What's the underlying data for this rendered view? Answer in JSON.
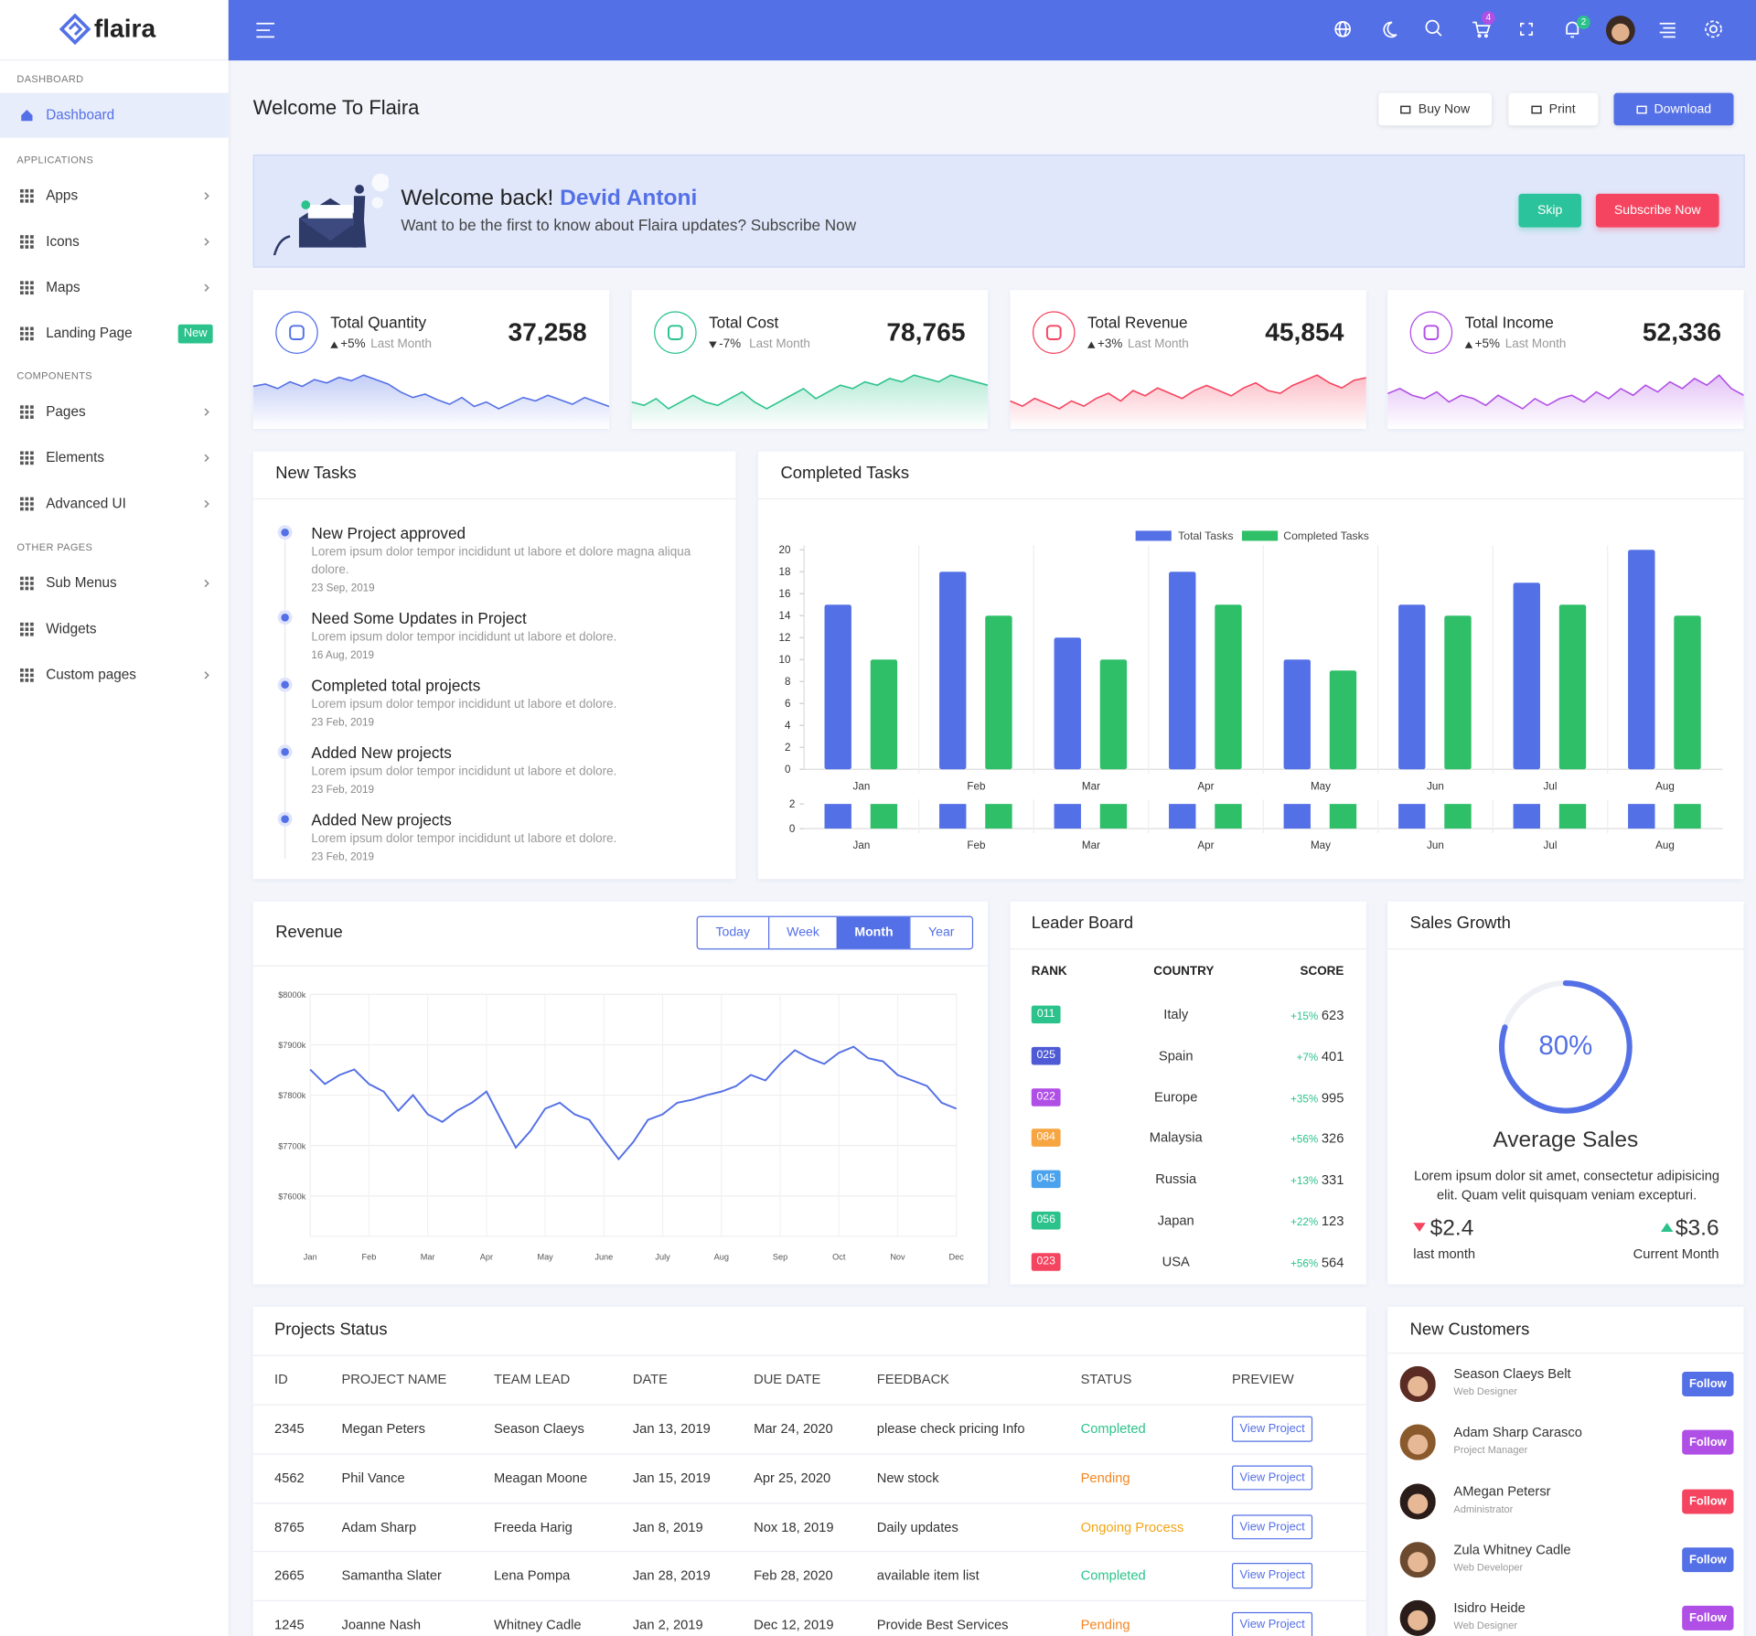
{
  "brand": "flaira",
  "sidebar": [
    {
      "title": "DASHBOARD",
      "items": [
        {
          "label": "Dashboard",
          "active": true
        }
      ]
    },
    {
      "title": "APPLICATIONS",
      "items": [
        {
          "label": "Apps",
          "arrow": true
        },
        {
          "label": "Icons",
          "arrow": true
        },
        {
          "label": "Maps",
          "arrow": true
        },
        {
          "label": "Landing Page",
          "badge": "New"
        }
      ]
    },
    {
      "title": "COMPONENTS",
      "items": [
        {
          "label": "Pages",
          "arrow": true
        },
        {
          "label": "Elements",
          "arrow": true
        },
        {
          "label": "Advanced UI",
          "arrow": true
        }
      ]
    },
    {
      "title": "OTHER PAGES",
      "items": [
        {
          "label": "Sub Menus",
          "arrow": true
        },
        {
          "label": "Widgets"
        },
        {
          "label": "Custom pages",
          "arrow": true
        }
      ]
    }
  ],
  "header": {
    "cart_badge": "4",
    "notification_badge": "2"
  },
  "page_title": "Welcome To Flaira",
  "actions": [
    "Buy Now",
    "Print",
    "Download"
  ],
  "banner": {
    "greeting": "Welcome back!",
    "name": "Devid Antoni",
    "text": "Want to be the first to know about Flaira updates? Subscribe Now",
    "buttons": [
      "Skip",
      "Subscribe Now"
    ]
  },
  "stats": [
    {
      "title": "Total Quantity",
      "change": "+5%",
      "period": "Last Month",
      "value": "37,258",
      "color": "#5470e6",
      "direction": "up",
      "trend": [
        60,
        62,
        58,
        64,
        60,
        66,
        63,
        68,
        65,
        70,
        66,
        62,
        55,
        50,
        53,
        48,
        44,
        50,
        42,
        46,
        40,
        45,
        50,
        47,
        52,
        48,
        44,
        50,
        46,
        42
      ]
    },
    {
      "title": "Total Cost",
      "change": "-7%",
      "period": "Last Month",
      "value": "78,765",
      "color": "#2bc38b",
      "direction": "down",
      "trend": [
        50,
        48,
        52,
        46,
        50,
        54,
        50,
        48,
        52,
        56,
        50,
        46,
        50,
        54,
        58,
        52,
        56,
        60,
        58,
        62,
        60,
        64,
        62,
        66,
        64,
        62,
        66,
        64,
        62,
        60
      ]
    },
    {
      "title": "Total Revenue",
      "change": "+3%",
      "period": "Last Month",
      "value": "45,854",
      "color": "#f5445f",
      "direction": "up",
      "trend": [
        50,
        46,
        52,
        48,
        44,
        50,
        46,
        52,
        56,
        50,
        58,
        54,
        60,
        56,
        52,
        58,
        62,
        58,
        54,
        60,
        64,
        58,
        56,
        62,
        66,
        70,
        64,
        60,
        66,
        68
      ]
    },
    {
      "title": "Total Income",
      "change": "+5%",
      "period": "Last Month",
      "value": "52,336",
      "color": "#b04fe6",
      "direction": "up",
      "trend": [
        55,
        58,
        54,
        52,
        56,
        50,
        54,
        52,
        48,
        54,
        50,
        46,
        52,
        48,
        52,
        54,
        50,
        56,
        52,
        58,
        54,
        60,
        56,
        62,
        58,
        64,
        60,
        66,
        58,
        54
      ]
    }
  ],
  "new_tasks": {
    "title": "New Tasks",
    "items": [
      {
        "title": "New Project approved",
        "text": "Lorem ipsum dolor tempor incididunt ut labore et dolore magna aliqua dolore.",
        "date": "23 Sep, 2019"
      },
      {
        "title": "Need Some Updates in Project",
        "text": "Lorem ipsum dolor tempor incididunt ut labore et dolore.",
        "date": "16 Aug, 2019"
      },
      {
        "title": "Completed total projects",
        "text": "Lorem ipsum dolor tempor incididunt ut labore et dolore.",
        "date": "23 Feb, 2019"
      },
      {
        "title": "Added New projects",
        "text": "Lorem ipsum dolor tempor incididunt ut labore et dolore.",
        "date": "23 Feb, 2019"
      },
      {
        "title": "Added New projects",
        "text": "Lorem ipsum dolor tempor incididunt ut labore et dolore.",
        "date": "23 Feb, 2019"
      }
    ]
  },
  "chart_data": [
    {
      "type": "bar",
      "title": "Completed Tasks",
      "categories": [
        "Jan",
        "Feb",
        "Mar",
        "Apr",
        "May",
        "Jun",
        "Jul",
        "Aug"
      ],
      "series": [
        {
          "name": "Total Tasks",
          "color": "#5470e6",
          "values": [
            15,
            18,
            12,
            18,
            10,
            15,
            17,
            20
          ]
        },
        {
          "name": "Completed Tasks",
          "color": "#2fbf68",
          "values": [
            10,
            14,
            10,
            15,
            9,
            14,
            15,
            14
          ]
        }
      ],
      "ylim": [
        0,
        20
      ],
      "yticks": [
        0,
        2,
        4,
        6,
        8,
        10,
        12,
        14,
        16,
        18,
        20
      ],
      "legend": "top",
      "navigator": {
        "ylim": [
          0,
          2
        ],
        "yticks": [
          0,
          2
        ]
      }
    },
    {
      "type": "line",
      "title": "Revenue",
      "tabs": [
        "Today",
        "Week",
        "Month",
        "Year"
      ],
      "active_tab": 2,
      "color": "#5470e6",
      "grid": true,
      "x": [
        0,
        0.25,
        0.5,
        0.75,
        1,
        1.25,
        1.5,
        1.75,
        2,
        2.25,
        2.5,
        2.75,
        3,
        3.25,
        3.5,
        3.75,
        4,
        4.25,
        4.5,
        4.75,
        5,
        5.25,
        5.5,
        5.75,
        6,
        6.25,
        6.5,
        6.75,
        7,
        7.25,
        7.5,
        7.75,
        8,
        8.25,
        8.5,
        8.75,
        9,
        9.25,
        9.5,
        9.75,
        10,
        10.25,
        10.5,
        10.75,
        11
      ],
      "values": [
        7851,
        7822,
        7840,
        7851,
        7822,
        7807,
        7769,
        7800,
        7762,
        7747,
        7769,
        7785,
        7807,
        7751,
        7696,
        7729,
        7773,
        7785,
        7762,
        7751,
        7711,
        7673,
        7707,
        7751,
        7762,
        7785,
        7791,
        7800,
        7807,
        7818,
        7840,
        7829,
        7862,
        7889,
        7873,
        7862,
        7884,
        7896,
        7873,
        7867,
        7840,
        7829,
        7818,
        7785,
        7773
      ],
      "xlim": [
        0,
        11
      ],
      "xticks": [
        {
          "value": 0,
          "label": "Jan"
        },
        {
          "value": 1,
          "label": "Feb"
        },
        {
          "value": 2,
          "label": "Mar"
        },
        {
          "value": 3,
          "label": "Apr"
        },
        {
          "value": 4,
          "label": "May"
        },
        {
          "value": 5,
          "label": "June"
        },
        {
          "value": 6,
          "label": "July"
        },
        {
          "value": 7,
          "label": "Aug"
        },
        {
          "value": 8,
          "label": "Sep"
        },
        {
          "value": 9,
          "label": "Oct"
        },
        {
          "value": 10,
          "label": "Nov"
        },
        {
          "value": 11,
          "label": "Dec"
        }
      ],
      "ylim": [
        7520,
        8000
      ],
      "yticks": [
        {
          "value": 7600,
          "label": "$7600k"
        },
        {
          "value": 7700,
          "label": "$7700k"
        },
        {
          "value": 7800,
          "label": "$7800k"
        },
        {
          "value": 7900,
          "label": "$7900k"
        },
        {
          "value": 8000,
          "label": "$8000k"
        }
      ]
    },
    {
      "type": "gauge",
      "title": "Sales Growth",
      "values": [
        80
      ],
      "value_labels": [
        "80%"
      ],
      "range": [
        0,
        100
      ],
      "color": "#5470e6",
      "label": "Average Sales",
      "text": "Lorem ipsum dolor sit amet, consectetur adipisicing elit. Quam velit quisquam veniam excepturi.",
      "footer": [
        {
          "value": "$2.4",
          "label": "last month",
          "direction": "down"
        },
        {
          "value": "$3.6",
          "label": "Current Month",
          "direction": "up"
        }
      ]
    }
  ],
  "leaderboard": {
    "title": "Leader Board",
    "headers": [
      "RANK",
      "COUNTRY",
      "SCORE"
    ],
    "rows": [
      {
        "rank": "011",
        "country": "Italy",
        "change": "+15%",
        "score": "623",
        "color": "#2bc38b"
      },
      {
        "rank": "025",
        "country": "Spain",
        "change": "+7%",
        "score": "401",
        "color": "#4f5bd5"
      },
      {
        "rank": "022",
        "country": "Europe",
        "change": "+35%",
        "score": "995",
        "color": "#b04fe6"
      },
      {
        "rank": "084",
        "country": "Malaysia",
        "change": "+56%",
        "score": "326",
        "color": "#f7a541"
      },
      {
        "rank": "045",
        "country": "Russia",
        "change": "+13%",
        "score": "331",
        "color": "#4aa3ec"
      },
      {
        "rank": "056",
        "country": "Japan",
        "change": "+22%",
        "score": "123",
        "color": "#2bc38b"
      },
      {
        "rank": "023",
        "country": "USA",
        "change": "+56%",
        "score": "564",
        "color": "#f5445f"
      }
    ]
  },
  "projects": {
    "title": "Projects Status",
    "columns": [
      "ID",
      "PROJECT NAME",
      "TEAM LEAD",
      "DATE",
      "DUE DATE",
      "FEEDBACK",
      "STATUS",
      "PREVIEW"
    ],
    "button": "View Project",
    "rows": [
      {
        "cells": [
          "2345",
          "Megan Peters",
          "Season Claeys",
          "Jan 13, 2019",
          "Mar 24, 2020",
          "please check pricing Info",
          "Completed"
        ],
        "status_color": "#2bc38b"
      },
      {
        "cells": [
          "4562",
          "Phil Vance",
          "Meagan Moone",
          "Jan 15, 2019",
          "Apr 25, 2020",
          "New stock",
          "Pending"
        ],
        "status_color": "#f7851f"
      },
      {
        "cells": [
          "8765",
          "Adam Sharp",
          "Freeda Harig",
          "Jan 8, 2019",
          "Nox 18, 2019",
          "Daily updates",
          "Ongoing Process"
        ],
        "status_color": "#f2a516"
      },
      {
        "cells": [
          "2665",
          "Samantha Slater",
          "Lena Pompa",
          "Jan 28, 2019",
          "Feb 28, 2020",
          "available item list",
          "Completed"
        ],
        "status_color": "#2bc38b"
      },
      {
        "cells": [
          "1245",
          "Joanne Nash",
          "Whitney Cadle",
          "Jan 2, 2019",
          "Dec 12, 2019",
          "Provide Best Services",
          "Pending"
        ],
        "status_color": "#f7851f"
      }
    ]
  },
  "customers": {
    "title": "New Customers",
    "button": "Follow",
    "rows": [
      {
        "name": "Season Claeys Belt",
        "role": "Web Designer",
        "color": "#5470e6"
      },
      {
        "name": "Adam Sharp Carasco",
        "role": "Project Manager",
        "color": "#b04fe6"
      },
      {
        "name": "AMegan Petersr",
        "role": "Administrator",
        "color": "#f5445f"
      },
      {
        "name": "Zula Whitney Cadle",
        "role": "Web Developer",
        "color": "#5470e6"
      },
      {
        "name": "Isidro Heide",
        "role": "Web Designer",
        "color": "#b04fe6"
      }
    ]
  }
}
